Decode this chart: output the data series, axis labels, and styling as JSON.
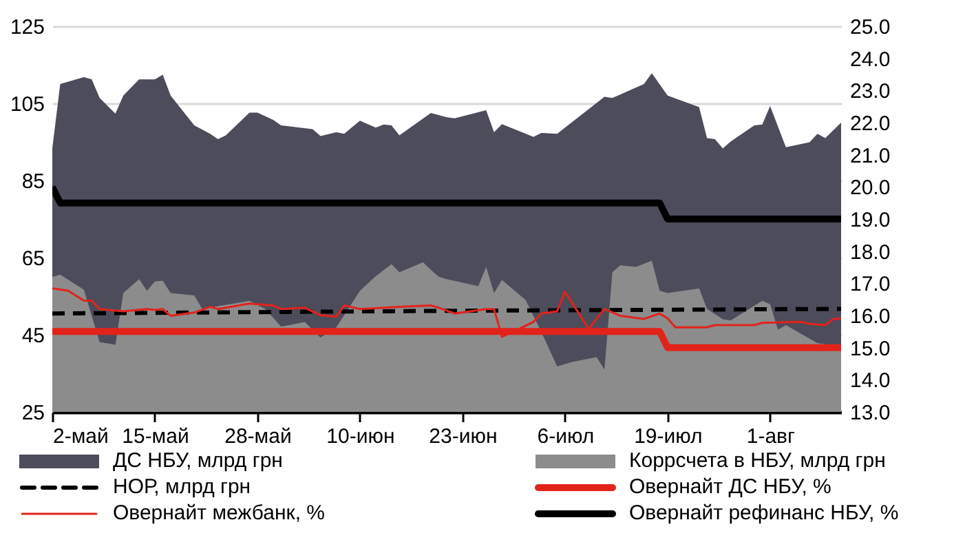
{
  "chart_data": {
    "type": "area",
    "grid": "y",
    "legend": "bottom",
    "xlim": [
      "--05-02",
      "--08-10"
    ],
    "xticks": [
      {
        "value": "--05-02",
        "label": "2-май"
      },
      {
        "value": "--05-15",
        "label": "15-май"
      },
      {
        "value": "--05-28",
        "label": "28-май"
      },
      {
        "value": "--06-10",
        "label": "10-июн"
      },
      {
        "value": "--06-23",
        "label": "23-июн"
      },
      {
        "value": "--07-06",
        "label": "6-июл"
      },
      {
        "value": "--07-19",
        "label": "19-июл"
      },
      {
        "value": "--08-01",
        "label": "1-авг"
      }
    ],
    "ylim": [
      25,
      125
    ],
    "yticks": [
      25,
      45,
      65,
      85,
      105,
      125
    ],
    "y2lim": [
      13,
      25
    ],
    "y2ticks": [
      {
        "value": 13,
        "label": "13.0"
      },
      {
        "value": 14,
        "label": "14.0"
      },
      {
        "value": 15,
        "label": "15.0"
      },
      {
        "value": 16,
        "label": "16.0"
      },
      {
        "value": 17,
        "label": "17.0"
      },
      {
        "value": 18,
        "label": "18.0"
      },
      {
        "value": 19,
        "label": "19.0"
      },
      {
        "value": 20,
        "label": "20.0"
      },
      {
        "value": 21,
        "label": "21.0"
      },
      {
        "value": 22,
        "label": "22.0"
      },
      {
        "value": 23,
        "label": "23.0"
      },
      {
        "value": 24,
        "label": "24.0"
      },
      {
        "value": 25,
        "label": "25.0"
      }
    ],
    "series": [
      {
        "name": "ДС НБУ, млрд грн",
        "color": "#4d4c5a",
        "x": [
          "--05-02",
          "--05-03",
          "--05-06",
          "--05-07",
          "--05-08",
          "--05-10",
          "--05-11",
          "--05-13",
          "--05-15",
          "--05-16",
          "--05-17",
          "--05-20",
          "--05-22",
          "--05-23",
          "--05-24",
          "--05-27",
          "--05-28",
          "--05-30",
          "--05-31",
          "--06-04",
          "--06-05",
          "--06-07",
          "--06-08",
          "--06-10",
          "--06-12",
          "--06-13",
          "--06-14",
          "--06-15",
          "--06-19",
          "--06-21",
          "--06-22",
          "--06-26",
          "--06-27",
          "--06-28",
          "--07-02",
          "--07-03",
          "--07-05",
          "--07-11",
          "--07-12",
          "--07-16",
          "--07-17",
          "--07-19",
          "--07-23",
          "--07-24",
          "--07-25",
          "--07-26",
          "--07-27",
          "--07-30",
          "--07-31",
          "--08-01",
          "--08-03",
          "--08-06",
          "--08-07",
          "--08-08",
          "--08-10"
        ],
        "values": [
          93.3,
          110,
          111.8,
          111.2,
          106.4,
          102.3,
          107,
          111.2,
          111.2,
          112.4,
          107,
          99.3,
          97.1,
          95.7,
          96.7,
          102.6,
          102.6,
          100.7,
          99.3,
          98.3,
          96.5,
          97.5,
          97.1,
          100.5,
          98.7,
          99.5,
          99.3,
          96.7,
          102.5,
          101.4,
          101.1,
          103.2,
          97.5,
          99.6,
          96.3,
          97.3,
          97.1,
          106.7,
          106.4,
          110,
          112.8,
          107,
          104,
          96,
          95.7,
          93.3,
          95.1,
          99.3,
          99.5,
          104.3,
          93.6,
          94.9,
          97.1,
          96,
          100
        ]
      },
      {
        "name": "Коррсчета в НБУ, млрд грн",
        "color": "#8c8c8c",
        "x": [
          "--05-02",
          "--05-03",
          "--05-06",
          "--05-08",
          "--05-10",
          "--05-11",
          "--05-13",
          "--05-14",
          "--05-15",
          "--05-16",
          "--05-17",
          "--05-20",
          "--05-21",
          "--05-27",
          "--05-29",
          "--05-31",
          "--06-03",
          "--06-05",
          "--06-07",
          "--06-10",
          "--06-12",
          "--06-14",
          "--06-15",
          "--06-18",
          "--06-19",
          "--06-20",
          "--06-21",
          "--06-25",
          "--06-26",
          "--06-27",
          "--06-28",
          "--07-01",
          "--07-03",
          "--07-05",
          "--07-07",
          "--07-10",
          "--07-11",
          "--07-12",
          "--07-13",
          "--07-15",
          "--07-17",
          "--07-18",
          "--07-19",
          "--07-23",
          "--07-24",
          "--07-26",
          "--07-27",
          "--07-31",
          "--08-01",
          "--08-02",
          "--08-03",
          "--08-07",
          "--08-10"
        ],
        "values": [
          60,
          60.6,
          56.7,
          43.1,
          42.4,
          55.8,
          59.4,
          56.4,
          58.8,
          59,
          55.8,
          55.2,
          51.7,
          53.8,
          51.7,
          47.1,
          48.3,
          44.3,
          46.9,
          56.4,
          60.2,
          63.3,
          61.2,
          63.8,
          61.8,
          60,
          59.4,
          57.6,
          62.6,
          55.8,
          59.2,
          54,
          45.7,
          36.8,
          38,
          39.2,
          36,
          61.2,
          63,
          62.6,
          64.2,
          56.4,
          55.8,
          57,
          51.7,
          49,
          48.7,
          53.8,
          52.9,
          46.3,
          47.5,
          42.8,
          42.1
        ]
      },
      {
        "name": "НОР, млрд грн",
        "type": "line",
        "line_style": "dashed",
        "color": "#000000",
        "x": [
          "--05-02",
          "--06-21",
          "--08-10"
        ],
        "values": [
          50.5,
          51.2,
          51.7
        ]
      },
      {
        "name": "Овернайт ДС НБУ, %",
        "type": "line",
        "axis": "y2",
        "color": "#e2231a",
        "x": [
          "--05-02",
          "--07-18",
          "--07-19",
          "--08-10"
        ],
        "values": [
          15.5,
          15.5,
          15,
          15
        ]
      },
      {
        "name": "Овернайт межбанк, %",
        "type": "line",
        "axis": "y2",
        "color": "#e2231a",
        "x": [
          "--05-02",
          "--05-04",
          "--05-06",
          "--05-07",
          "--05-08",
          "--05-11",
          "--05-14",
          "--05-15",
          "--05-16",
          "--05-17",
          "--05-20",
          "--05-22",
          "--05-23",
          "--05-27",
          "--05-30",
          "--05-31",
          "--06-03",
          "--06-05",
          "--06-07",
          "--06-08",
          "--06-10",
          "--06-15",
          "--06-19",
          "--06-20",
          "--06-22",
          "--06-26",
          "--06-27",
          "--06-28",
          "--06-30",
          "--07-02",
          "--07-03",
          "--07-05",
          "--07-06",
          "--07-09",
          "--07-11",
          "--07-13",
          "--07-16",
          "--07-18",
          "--07-19",
          "--07-20",
          "--07-24",
          "--07-25",
          "--07-30",
          "--07-31",
          "--08-05",
          "--08-06",
          "--08-08",
          "--08-09",
          "--08-10"
        ],
        "values": [
          16.84,
          16.77,
          16.46,
          16.46,
          16.2,
          16.13,
          16.2,
          16.17,
          16.2,
          15.99,
          16.09,
          16.27,
          16.2,
          16.37,
          16.31,
          16.2,
          16.24,
          16.01,
          15.96,
          16.31,
          16.2,
          16.27,
          16.31,
          16.24,
          16.06,
          16.2,
          16.2,
          15.34,
          15.56,
          15.8,
          16.06,
          16.13,
          16.74,
          15.58,
          16.2,
          15.99,
          15.89,
          16.06,
          15.91,
          15.63,
          15.63,
          15.7,
          15.7,
          15.77,
          15.8,
          15.74,
          15.7,
          15.89,
          15.91
        ]
      },
      {
        "name": "Овернайт рефинанс НБУ, %",
        "type": "line",
        "axis": "y2",
        "color": "#000000",
        "x": [
          "--05-02",
          "--05-03",
          "--07-18",
          "--07-19",
          "--08-10"
        ],
        "values": [
          20,
          19.5,
          19.5,
          19,
          19
        ]
      }
    ]
  }
}
